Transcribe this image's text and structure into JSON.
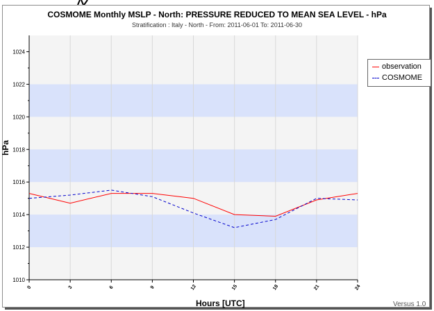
{
  "chart_data": {
    "type": "line",
    "title": "COSMOME Monthly MSLP - North: PRESSURE REDUCED TO MEAN SEA LEVEL  - hPa",
    "subtitle": "Stratification : Italy - North - From: 2011-06-01 To: 2011-06-30",
    "xlabel": "Hours [UTC]",
    "ylabel": "hPa",
    "xlim": [
      0,
      24
    ],
    "ylim": [
      1010,
      1025
    ],
    "x_ticks": [
      0,
      3,
      6,
      9,
      12,
      15,
      18,
      21,
      24
    ],
    "y_ticks": [
      1010,
      1012,
      1014,
      1016,
      1018,
      1020,
      1022,
      1024
    ],
    "bands": [
      [
        1012,
        1014
      ],
      [
        1016,
        1018
      ],
      [
        1020,
        1022
      ]
    ],
    "grid": true,
    "legend_position": "right",
    "series": [
      {
        "name": "observation",
        "color": "#ff0000",
        "dash": "solid",
        "x": [
          0,
          3,
          6,
          9,
          12,
          15,
          18,
          21,
          24
        ],
        "values": [
          1015.3,
          1014.7,
          1015.3,
          1015.3,
          1015.0,
          1014.0,
          1013.9,
          1014.9,
          1015.3
        ]
      },
      {
        "name": "COSMOME",
        "color": "#0000cc",
        "dash": "dashed",
        "x": [
          0,
          3,
          6,
          9,
          12,
          15,
          18,
          21,
          24
        ],
        "values": [
          1015.0,
          1015.2,
          1015.5,
          1015.1,
          1014.1,
          1013.2,
          1013.7,
          1015.0,
          1014.9
        ]
      }
    ]
  },
  "footer": {
    "version_text": "Versus 1.0"
  }
}
